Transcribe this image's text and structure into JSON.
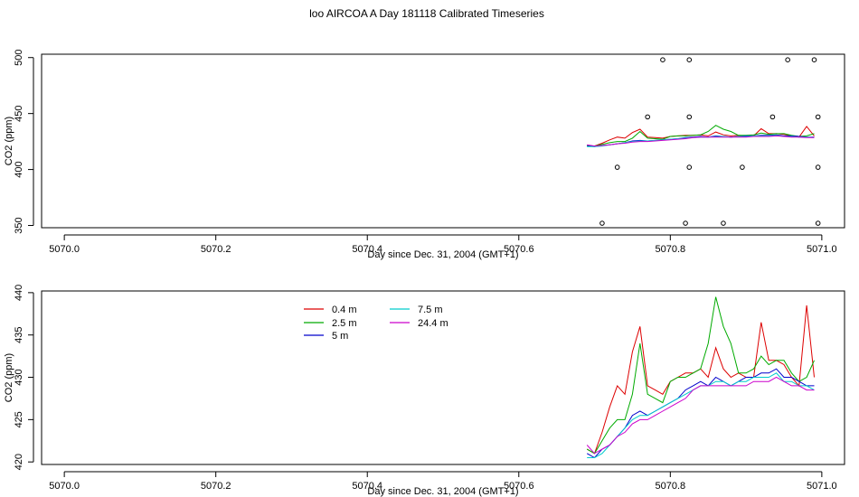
{
  "title": "loo AIRCOA A  Day 181118  Calibrated Timeseries",
  "colors": {
    "0.4 m": "#dd0000",
    "2.5 m": "#00aa00",
    "5 m": "#0000cc",
    "7.5 m": "#00cccc",
    "24.4 m": "#cc00cc"
  },
  "chart_data": [
    {
      "type": "line",
      "xlabel": "Day since Dec. 31, 2004 (GMT+1)",
      "ylabel": "CO2 (ppm)",
      "xlim": [
        5069.97,
        5071.03
      ],
      "ylim": [
        348,
        503
      ],
      "xticks": [
        "5070.0",
        "5070.2",
        "5070.4",
        "5070.6",
        "5070.8",
        "5071.0"
      ],
      "yticks": [
        "350",
        "400",
        "450",
        "500"
      ],
      "x": [
        5070.69,
        5070.7,
        5070.71,
        5070.72,
        5070.73,
        5070.74,
        5070.75,
        5070.76,
        5070.77,
        5070.78,
        5070.79,
        5070.8,
        5070.81,
        5070.82,
        5070.83,
        5070.84,
        5070.85,
        5070.86,
        5070.87,
        5070.88,
        5070.89,
        5070.9,
        5070.91,
        5070.92,
        5070.93,
        5070.94,
        5070.95,
        5070.96,
        5070.97,
        5070.98,
        5070.99
      ],
      "series": [
        {
          "name": "0.4 m",
          "values": [
            421.5,
            421.0,
            423.5,
            426.5,
            429.0,
            428.0,
            433.0,
            436.0,
            429.0,
            428.5,
            428.0,
            429.5,
            430.0,
            430.5,
            430.5,
            431.0,
            430.0,
            433.5,
            431.0,
            430.0,
            430.5,
            430.0,
            430.0,
            436.5,
            432.0,
            432.0,
            431.5,
            430.0,
            429.0,
            438.5,
            430.0
          ]
        },
        {
          "name": "2.5 m",
          "values": [
            421.5,
            421.0,
            422.5,
            424.0,
            425.0,
            425.0,
            428.0,
            434.0,
            428.0,
            427.5,
            427.0,
            429.5,
            430.0,
            430.0,
            430.5,
            431.0,
            434.0,
            439.5,
            436.0,
            434.0,
            430.5,
            430.5,
            431.0,
            432.5,
            431.5,
            432.0,
            432.0,
            430.5,
            429.5,
            430.0,
            432.0
          ]
        },
        {
          "name": "5 m",
          "values": [
            421.0,
            420.5,
            421.5,
            422.0,
            423.0,
            424.0,
            425.5,
            426.0,
            425.5,
            426.0,
            426.5,
            427.0,
            427.5,
            428.5,
            429.0,
            429.5,
            429.0,
            430.0,
            429.5,
            429.0,
            429.5,
            430.0,
            430.0,
            430.5,
            430.5,
            431.0,
            430.0,
            430.0,
            429.5,
            429.0,
            429.0
          ]
        },
        {
          "name": "7.5 m",
          "values": [
            420.5,
            420.5,
            421.0,
            422.0,
            423.0,
            424.0,
            425.0,
            425.5,
            425.5,
            426.0,
            426.5,
            427.0,
            427.5,
            428.0,
            428.5,
            429.0,
            429.0,
            429.5,
            429.5,
            429.0,
            429.5,
            429.5,
            430.0,
            430.0,
            430.0,
            430.5,
            429.5,
            429.5,
            429.0,
            429.0,
            428.5
          ]
        },
        {
          "name": "24.4 m",
          "values": [
            422.0,
            421.0,
            421.5,
            422.0,
            423.0,
            423.5,
            424.5,
            425.0,
            425.0,
            425.5,
            426.0,
            426.5,
            427.0,
            427.5,
            428.5,
            429.0,
            429.0,
            429.0,
            429.0,
            429.0,
            429.0,
            429.0,
            429.5,
            429.5,
            429.5,
            430.0,
            429.5,
            429.0,
            429.0,
            428.5,
            428.5
          ]
        }
      ],
      "outliers": [
        {
          "x": 5070.79,
          "y": 498
        },
        {
          "x": 5070.825,
          "y": 498
        },
        {
          "x": 5070.955,
          "y": 498
        },
        {
          "x": 5070.99,
          "y": 498
        },
        {
          "x": 5070.77,
          "y": 447
        },
        {
          "x": 5070.825,
          "y": 447
        },
        {
          "x": 5070.935,
          "y": 447
        },
        {
          "x": 5070.995,
          "y": 447
        },
        {
          "x": 5070.73,
          "y": 402
        },
        {
          "x": 5070.825,
          "y": 402
        },
        {
          "x": 5070.895,
          "y": 402
        },
        {
          "x": 5070.995,
          "y": 402
        },
        {
          "x": 5070.71,
          "y": 352
        },
        {
          "x": 5070.82,
          "y": 352
        },
        {
          "x": 5070.87,
          "y": 352
        },
        {
          "x": 5070.995,
          "y": 352
        }
      ]
    },
    {
      "type": "line",
      "xlabel": "Day since Dec. 31, 2004 (GMT+1)",
      "ylabel": "CO2 (ppm)",
      "xlim": [
        5069.97,
        5071.03
      ],
      "ylim": [
        419.7,
        440.2
      ],
      "xticks": [
        "5070.0",
        "5070.2",
        "5070.4",
        "5070.6",
        "5070.8",
        "5071.0"
      ],
      "yticks": [
        "420",
        "425",
        "430",
        "435",
        "440"
      ],
      "legend": [
        {
          "name": "0.4 m"
        },
        {
          "name": "2.5 m"
        },
        {
          "name": "5 m"
        },
        {
          "name": "7.5 m"
        },
        {
          "name": "24.4 m"
        }
      ],
      "x": [
        5070.69,
        5070.7,
        5070.71,
        5070.72,
        5070.73,
        5070.74,
        5070.75,
        5070.76,
        5070.77,
        5070.78,
        5070.79,
        5070.8,
        5070.81,
        5070.82,
        5070.83,
        5070.84,
        5070.85,
        5070.86,
        5070.87,
        5070.88,
        5070.89,
        5070.9,
        5070.91,
        5070.92,
        5070.93,
        5070.94,
        5070.95,
        5070.96,
        5070.97,
        5070.98,
        5070.99
      ],
      "series": [
        {
          "name": "0.4 m",
          "values": [
            421.5,
            421.0,
            423.5,
            426.5,
            429.0,
            428.0,
            433.0,
            436.0,
            429.0,
            428.5,
            428.0,
            429.5,
            430.0,
            430.5,
            430.5,
            431.0,
            430.0,
            433.5,
            431.0,
            430.0,
            430.5,
            430.0,
            430.0,
            436.5,
            432.0,
            432.0,
            431.5,
            430.0,
            429.0,
            438.5,
            430.0
          ]
        },
        {
          "name": "2.5 m",
          "values": [
            421.5,
            421.0,
            422.5,
            424.0,
            425.0,
            425.0,
            428.0,
            434.0,
            428.0,
            427.5,
            427.0,
            429.5,
            430.0,
            430.0,
            430.5,
            431.0,
            434.0,
            439.5,
            436.0,
            434.0,
            430.5,
            430.5,
            431.0,
            432.5,
            431.5,
            432.0,
            432.0,
            430.5,
            429.5,
            430.0,
            432.0
          ]
        },
        {
          "name": "5 m",
          "values": [
            421.0,
            420.5,
            421.5,
            422.0,
            423.0,
            424.0,
            425.5,
            426.0,
            425.5,
            426.0,
            426.5,
            427.0,
            427.5,
            428.5,
            429.0,
            429.5,
            429.0,
            430.0,
            429.5,
            429.0,
            429.5,
            430.0,
            430.0,
            430.5,
            430.5,
            431.0,
            430.0,
            430.0,
            429.5,
            429.0,
            429.0
          ]
        },
        {
          "name": "7.5 m",
          "values": [
            420.5,
            420.5,
            421.0,
            422.0,
            423.0,
            424.0,
            425.0,
            425.5,
            425.5,
            426.0,
            426.5,
            427.0,
            427.5,
            428.0,
            428.5,
            429.0,
            429.0,
            429.5,
            429.5,
            429.0,
            429.5,
            429.5,
            430.0,
            430.0,
            430.0,
            430.5,
            429.5,
            429.5,
            429.0,
            429.0,
            428.5
          ]
        },
        {
          "name": "24.4 m",
          "values": [
            422.0,
            421.0,
            421.5,
            422.0,
            423.0,
            423.5,
            424.5,
            425.0,
            425.0,
            425.5,
            426.0,
            426.5,
            427.0,
            427.5,
            428.5,
            429.0,
            429.0,
            429.0,
            429.0,
            429.0,
            429.0,
            429.0,
            429.5,
            429.5,
            429.5,
            430.0,
            429.5,
            429.0,
            429.0,
            428.5,
            428.5
          ]
        }
      ]
    }
  ]
}
